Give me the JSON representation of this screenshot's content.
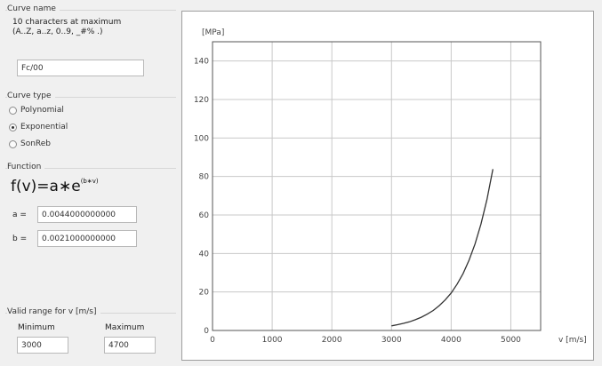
{
  "curve_name": {
    "title": "Curve name",
    "hint_line1": "10 characters at maximum",
    "hint_line2": "(A..Z, a..z, 0..9, _#% .)",
    "value": "Fc/00"
  },
  "curve_type": {
    "title": "Curve type",
    "options": [
      {
        "label": "Polynomial",
        "checked": false
      },
      {
        "label": "Exponential",
        "checked": true
      },
      {
        "label": "SonReb",
        "checked": false
      }
    ]
  },
  "function": {
    "title": "Function",
    "formula_main": "f(v)=a∗e",
    "formula_exp": "(b∗v)",
    "a_label": "a =",
    "a_value": "0.0044000000000",
    "b_label": "b =",
    "b_value": "0.0021000000000"
  },
  "valid_range": {
    "title": "Valid range for v [m/s]",
    "min_label": "Minimum",
    "min_value": "3000",
    "max_label": "Maximum",
    "max_value": "4700"
  },
  "chart_data": {
    "type": "line",
    "ylabel": "[MPa]",
    "xlabel": "v [m/s]",
    "xlim": [
      0,
      5500
    ],
    "ylim": [
      0,
      150
    ],
    "xticks": [
      0,
      1000,
      2000,
      3000,
      4000,
      5000
    ],
    "yticks": [
      0,
      20,
      40,
      60,
      80,
      100,
      120,
      140
    ],
    "grid": true,
    "series": [
      {
        "color": "#333333",
        "x": [
          3000,
          3100,
          3200,
          3300,
          3400,
          3500,
          3600,
          3700,
          3800,
          3900,
          4000,
          4100,
          4200,
          4300,
          4400,
          4500,
          4600,
          4700
        ],
        "y": [
          2.4,
          3.0,
          3.7,
          4.5,
          5.6,
          6.9,
          8.5,
          10.4,
          12.9,
          15.9,
          19.5,
          24.1,
          29.6,
          36.5,
          44.9,
          55.3,
          68.0,
          83.8
        ]
      }
    ]
  }
}
